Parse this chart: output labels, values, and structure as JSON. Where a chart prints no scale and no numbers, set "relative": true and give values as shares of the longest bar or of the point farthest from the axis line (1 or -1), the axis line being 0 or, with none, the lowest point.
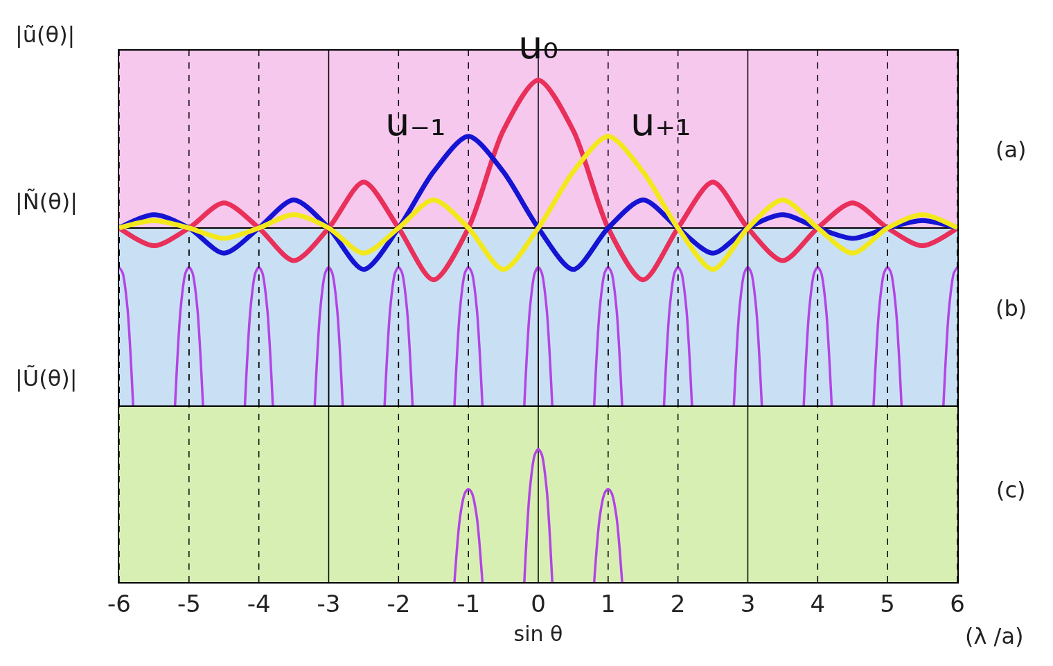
{
  "chart_data": [
    {
      "type": "line",
      "relative": true,
      "ylabel": "|ũ(θ)|",
      "annotations": [
        "(a)"
      ],
      "bands": [
        {
          "axis": "y",
          "from": 0,
          "to": 1.2,
          "color": "#f6c8ee"
        }
      ],
      "xlim": [
        -6,
        6
      ],
      "xticks": [
        -6,
        -5,
        -4,
        -3,
        -2,
        -1,
        0,
        1,
        2,
        3,
        4,
        5,
        6
      ],
      "tick_labels": false,
      "grid": "x",
      "legend": false,
      "x": [
        -6,
        -5.5,
        -5,
        -4.5,
        -4,
        -3.5,
        -3,
        -2.5,
        -2,
        -1.5,
        -1,
        -0.5,
        0,
        0.5,
        1,
        1.5,
        2,
        2.5,
        3,
        3.5,
        4,
        4.5,
        5,
        5.5,
        6
      ],
      "series": [
        {
          "name": "u₀",
          "color": "#e8305a",
          "values": [
            0,
            -0.12,
            0,
            0.17,
            0,
            -0.22,
            0,
            0.31,
            0,
            -0.35,
            0,
            0.66,
            1,
            0.66,
            0,
            -0.35,
            0,
            0.31,
            0,
            -0.22,
            0,
            0.17,
            0,
            -0.12,
            0
          ]
        },
        {
          "name": "u₋₁",
          "color": "#1414d2",
          "values": [
            0,
            0.09,
            0,
            -0.17,
            0,
            0.19,
            0,
            -0.28,
            0,
            0.38,
            0.62,
            0.38,
            0,
            -0.28,
            0,
            0.19,
            0,
            -0.17,
            0,
            0.09,
            0,
            -0.07,
            0,
            0.05,
            0
          ]
        },
        {
          "name": "u₊₁",
          "color": "#f2e81c",
          "values": [
            0,
            0.05,
            0,
            -0.07,
            0,
            0.09,
            0,
            -0.17,
            0,
            0.19,
            0,
            -0.28,
            0,
            0.38,
            0.62,
            0.38,
            0,
            -0.28,
            0,
            0.19,
            0,
            -0.17,
            0,
            0.09,
            0
          ]
        }
      ]
    },
    {
      "type": "line",
      "relative": true,
      "ylabel": "|Ñ(θ)|",
      "annotations": [
        "(b)"
      ],
      "xlim": [
        -6,
        6
      ],
      "xticks": [
        -6,
        -5,
        -4,
        -3,
        -2,
        -1,
        0,
        1,
        2,
        3,
        4,
        5,
        6
      ],
      "tick_labels": false,
      "grid": "x",
      "legend": false,
      "series": [
        {
          "color": "#b444e6",
          "x": [
            -6,
            -5.95,
            -5.88,
            -5.8,
            -5.5,
            -5.2,
            -5.12,
            -5.05,
            -5,
            -4.95,
            -4.88,
            -4.8,
            -4.5,
            -4.2,
            -4.12,
            -4.05,
            -4,
            -3.95,
            -3.88,
            -3.8,
            -3.5,
            -3.2,
            -3.12,
            -3.05,
            -3,
            -2.95,
            -2.88,
            -2.8,
            -2.5,
            -2.2,
            -2.12,
            -2.05,
            -2,
            -1.95,
            -1.88,
            -1.8,
            -1.5,
            -1.2,
            -1.12,
            -1.05,
            -1,
            -0.95,
            -0.88,
            -0.8,
            -0.5,
            -0.2,
            -0.12,
            -0.05,
            0,
            0.05,
            0.12,
            0.2,
            0.5,
            0.8,
            0.88,
            0.95,
            1,
            1.05,
            1.12,
            1.2,
            1.5,
            1.8,
            1.88,
            1.95,
            2,
            2.05,
            2.12,
            2.2,
            2.5,
            2.8,
            2.88,
            2.95,
            3,
            3.05,
            3.12,
            3.2,
            3.5,
            3.8,
            3.88,
            3.95,
            4,
            4.05,
            4.12,
            4.2,
            4.5,
            4.8,
            4.88,
            4.95,
            5,
            5.05,
            5.12,
            5.2,
            5.5,
            5.8,
            5.88,
            5.95,
            6
          ],
          "values": [
            1,
            0.96,
            0.7,
            0,
            null,
            0,
            0.7,
            0.96,
            1,
            0.96,
            0.7,
            0,
            null,
            0,
            0.7,
            0.96,
            1,
            0.96,
            0.7,
            0,
            null,
            0,
            0.7,
            0.96,
            1,
            0.96,
            0.7,
            0,
            null,
            0,
            0.7,
            0.96,
            1,
            0.96,
            0.7,
            0,
            null,
            0,
            0.7,
            0.96,
            1,
            0.96,
            0.7,
            0,
            null,
            0,
            0.7,
            0.96,
            1,
            0.96,
            0.7,
            0,
            null,
            0,
            0.7,
            0.96,
            1,
            0.96,
            0.7,
            0,
            null,
            0,
            0.7,
            0.96,
            1,
            0.96,
            0.7,
            0,
            null,
            0,
            0.7,
            0.96,
            1,
            0.96,
            0.7,
            0,
            null,
            0,
            0.7,
            0.96,
            1,
            0.96,
            0.7,
            0,
            null,
            0,
            0.7,
            0.96,
            1,
            0.96,
            0.7,
            0,
            null,
            0,
            0.7,
            0.96,
            1
          ]
        }
      ]
    },
    {
      "type": "line",
      "relative": true,
      "ylabel": "|Ũ(θ)|",
      "xlabel": "sin θ",
      "annotations": [
        "(c)",
        "(λ /a)"
      ],
      "xlim": [
        -6,
        6
      ],
      "xticks": [
        -6,
        -5,
        -4,
        -3,
        -2,
        -1,
        0,
        1,
        2,
        3,
        4,
        5,
        6
      ],
      "tick_labels": "x",
      "grid": "x",
      "legend": false,
      "series": [
        {
          "color": "#b444e6",
          "x": [
            -1.2,
            -1.12,
            -1.05,
            -1,
            -0.95,
            -0.88,
            -0.8,
            -0.5,
            -0.2,
            -0.12,
            -0.05,
            0,
            0.05,
            0.12,
            0.2,
            0.5,
            0.8,
            0.88,
            0.95,
            1,
            1.05,
            1.12,
            1.2
          ],
          "values": [
            0,
            0.49,
            0.67,
            0.7,
            0.67,
            0.49,
            0,
            null,
            0,
            0.7,
            0.96,
            1,
            0.96,
            0.7,
            0,
            null,
            0,
            0.49,
            0.67,
            0.7,
            0.67,
            0.49,
            0
          ]
        }
      ]
    }
  ]
}
